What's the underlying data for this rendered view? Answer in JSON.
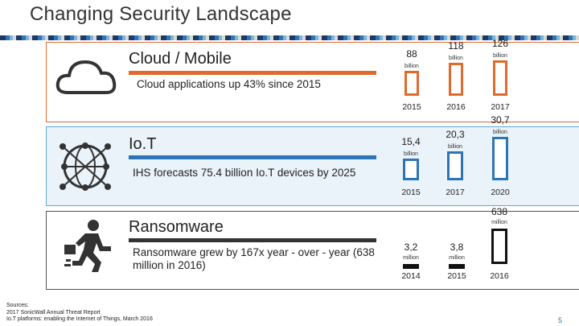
{
  "title": "Changing Security Landscape",
  "colors": {
    "orange": "#e06a2c",
    "blue": "#2e75b6",
    "dark": "#111111"
  },
  "sections": {
    "cloud": {
      "heading": "Cloud / Mobile",
      "note": "Cloud applications up 43% since 2015",
      "icon": "cloud-icon",
      "chart_data": {
        "type": "bar",
        "categories": [
          "2015",
          "2016",
          "2017"
        ],
        "value_labels": [
          "88",
          "118",
          "126"
        ],
        "unit": "billion",
        "values": [
          88,
          118,
          126
        ]
      }
    },
    "iot": {
      "heading": "Io.T",
      "note": "IHS forecasts 75.4 billion Io.T devices by 2025",
      "icon": "globe-network-icon",
      "chart_data": {
        "type": "bar",
        "categories": [
          "2015",
          "2017",
          "2020"
        ],
        "value_labels": [
          "15,4",
          "20,3",
          "30,7"
        ],
        "unit": "billion",
        "values": [
          15.4,
          20.3,
          30.7
        ]
      }
    },
    "ransomware": {
      "heading": "Ransomware",
      "note": "Ransomware grew by 167x year - over - year (638 million in 2016)",
      "icon": "running-thief-icon",
      "chart_data": {
        "type": "bar",
        "categories": [
          "2014",
          "2015",
          "2016"
        ],
        "value_labels": [
          "3,2",
          "3,8",
          "638"
        ],
        "unit": "million",
        "values": [
          3.2,
          3.8,
          638
        ]
      }
    }
  },
  "sources": {
    "label": "Sources:",
    "line1": "2017 SonicWall Annual Threat Report",
    "line2": "Io.T platforms: enabling the Internet of Things, March 2016"
  },
  "page_number": "5"
}
